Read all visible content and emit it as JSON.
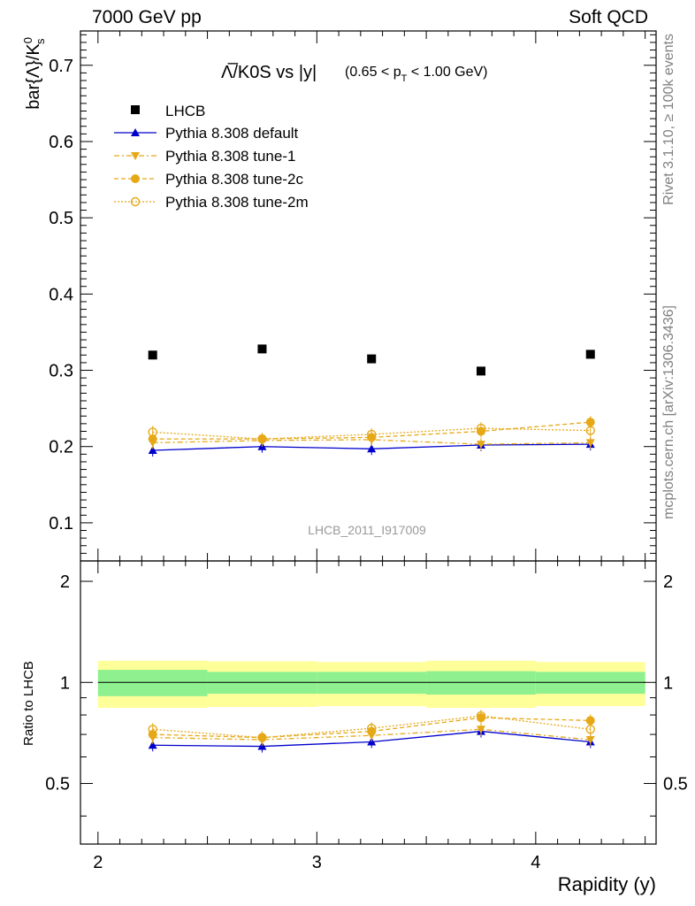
{
  "header": {
    "left": "7000 GeV pp",
    "right": "Soft QCD"
  },
  "side_labels": {
    "rivet": "Rivet 3.1.10, ≥ 100k events",
    "mcplots": "mcplots.cern.ch [arXiv:1306.3436]"
  },
  "chart_data": {
    "type": "scatter",
    "title_main": "Λ̅/K0S vs |y|",
    "title_sub": "(0.65 < p",
    "title_sub_subscript": "T",
    "title_sub_tail": " < 1.00 GeV)",
    "analysis_label": "LHCB_2011_I917009",
    "xlabel": "Rapidity (y)",
    "ylabel_main": "bar{Λ}/K",
    "ylabel_sup": "0",
    "ylabel_sub": "s",
    "ylabel_ratio": "Ratio to LHCB",
    "xlim": [
      1.92,
      4.55
    ],
    "ylim_main": [
      0.05,
      0.745
    ],
    "ylim_ratio": [
      0.33,
      2.3
    ],
    "x_ticks": [
      2,
      3,
      4
    ],
    "x_tick_labels": [
      "2",
      "3",
      "4"
    ],
    "y_ticks_main": [
      0.1,
      0.2,
      0.3,
      0.4,
      0.5,
      0.6,
      0.7
    ],
    "y_tick_labels_main": [
      "0.1",
      "0.2",
      "0.3",
      "0.4",
      "0.5",
      "0.6",
      "0.7"
    ],
    "y_ticks_ratio": [
      0.5,
      1,
      2
    ],
    "y_tick_labels_ratio": [
      "0.5",
      "1",
      "2"
    ],
    "x": [
      2.25,
      2.75,
      3.25,
      3.75,
      4.25
    ],
    "bin_edges": [
      2.0,
      2.5,
      3.0,
      3.5,
      4.0,
      4.5
    ],
    "reference": {
      "name": "LHCB",
      "values": [
        0.32,
        0.328,
        0.315,
        0.299,
        0.321
      ],
      "ratio_band_inner": [
        0.09,
        0.075,
        0.075,
        0.08,
        0.075
      ],
      "ratio_band_outer": [
        0.16,
        0.155,
        0.15,
        0.16,
        0.15
      ]
    },
    "series": [
      {
        "name": "Pythia 8.308 default",
        "color": "#0000cc",
        "marker": "triangle-up",
        "dash": "",
        "values": [
          0.195,
          0.2,
          0.197,
          0.202,
          0.203
        ],
        "ratio": [
          0.65,
          0.645,
          0.665,
          0.715,
          0.665
        ]
      },
      {
        "name": "Pythia 8.308 tune-1",
        "color": "#e6a817",
        "marker": "triangle-down",
        "dash": "6,3,2,3",
        "values": [
          0.205,
          0.208,
          0.209,
          0.203,
          0.205
        ],
        "ratio": [
          0.685,
          0.675,
          0.695,
          0.725,
          0.675
        ]
      },
      {
        "name": "Pythia 8.308 tune-2c",
        "color": "#e6a817",
        "marker": "circle-filled",
        "dash": "5,3",
        "values": [
          0.21,
          0.21,
          0.212,
          0.22,
          0.232
        ],
        "ratio": [
          0.7,
          0.685,
          0.715,
          0.785,
          0.77
        ]
      },
      {
        "name": "Pythia 8.308 tune-2m",
        "color": "#e6a817",
        "marker": "circle-open",
        "dash": "2,2",
        "values": [
          0.219,
          0.21,
          0.216,
          0.224,
          0.221
        ],
        "ratio": [
          0.725,
          0.685,
          0.73,
          0.795,
          0.725
        ]
      }
    ],
    "legend_position": "top-left",
    "band_colors": {
      "inner": "#8ef08e",
      "outer": "#ffff99"
    }
  }
}
